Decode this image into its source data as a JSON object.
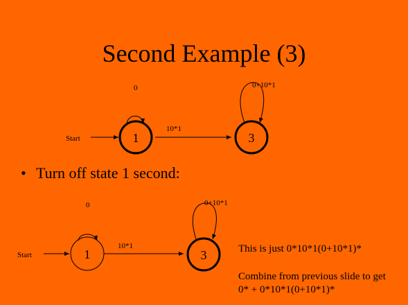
{
  "title": "Second Example (3)",
  "bullet": {
    "marker": "•",
    "text": "Turn off state 1 second:"
  },
  "diagram_top": {
    "start_label": "Start",
    "self_loop_label_state1": "0",
    "self_loop_label_state3": "0+10*1",
    "edge_label_1_to_3": "10*1",
    "state1_label": "1",
    "state3_label": "3"
  },
  "diagram_bottom": {
    "start_label": "Start",
    "self_loop_label_state1": "0",
    "self_loop_label_state3": "0+10*1",
    "edge_label_1_to_3": "10*1",
    "state1_label": "1",
    "state3_label": "3"
  },
  "notes": {
    "line1": "This is just 0*10*1(0+10*1)*",
    "line2": "Combine from previous slide to get",
    "line3": "0* + 0*10*1(0+10*1)*"
  }
}
